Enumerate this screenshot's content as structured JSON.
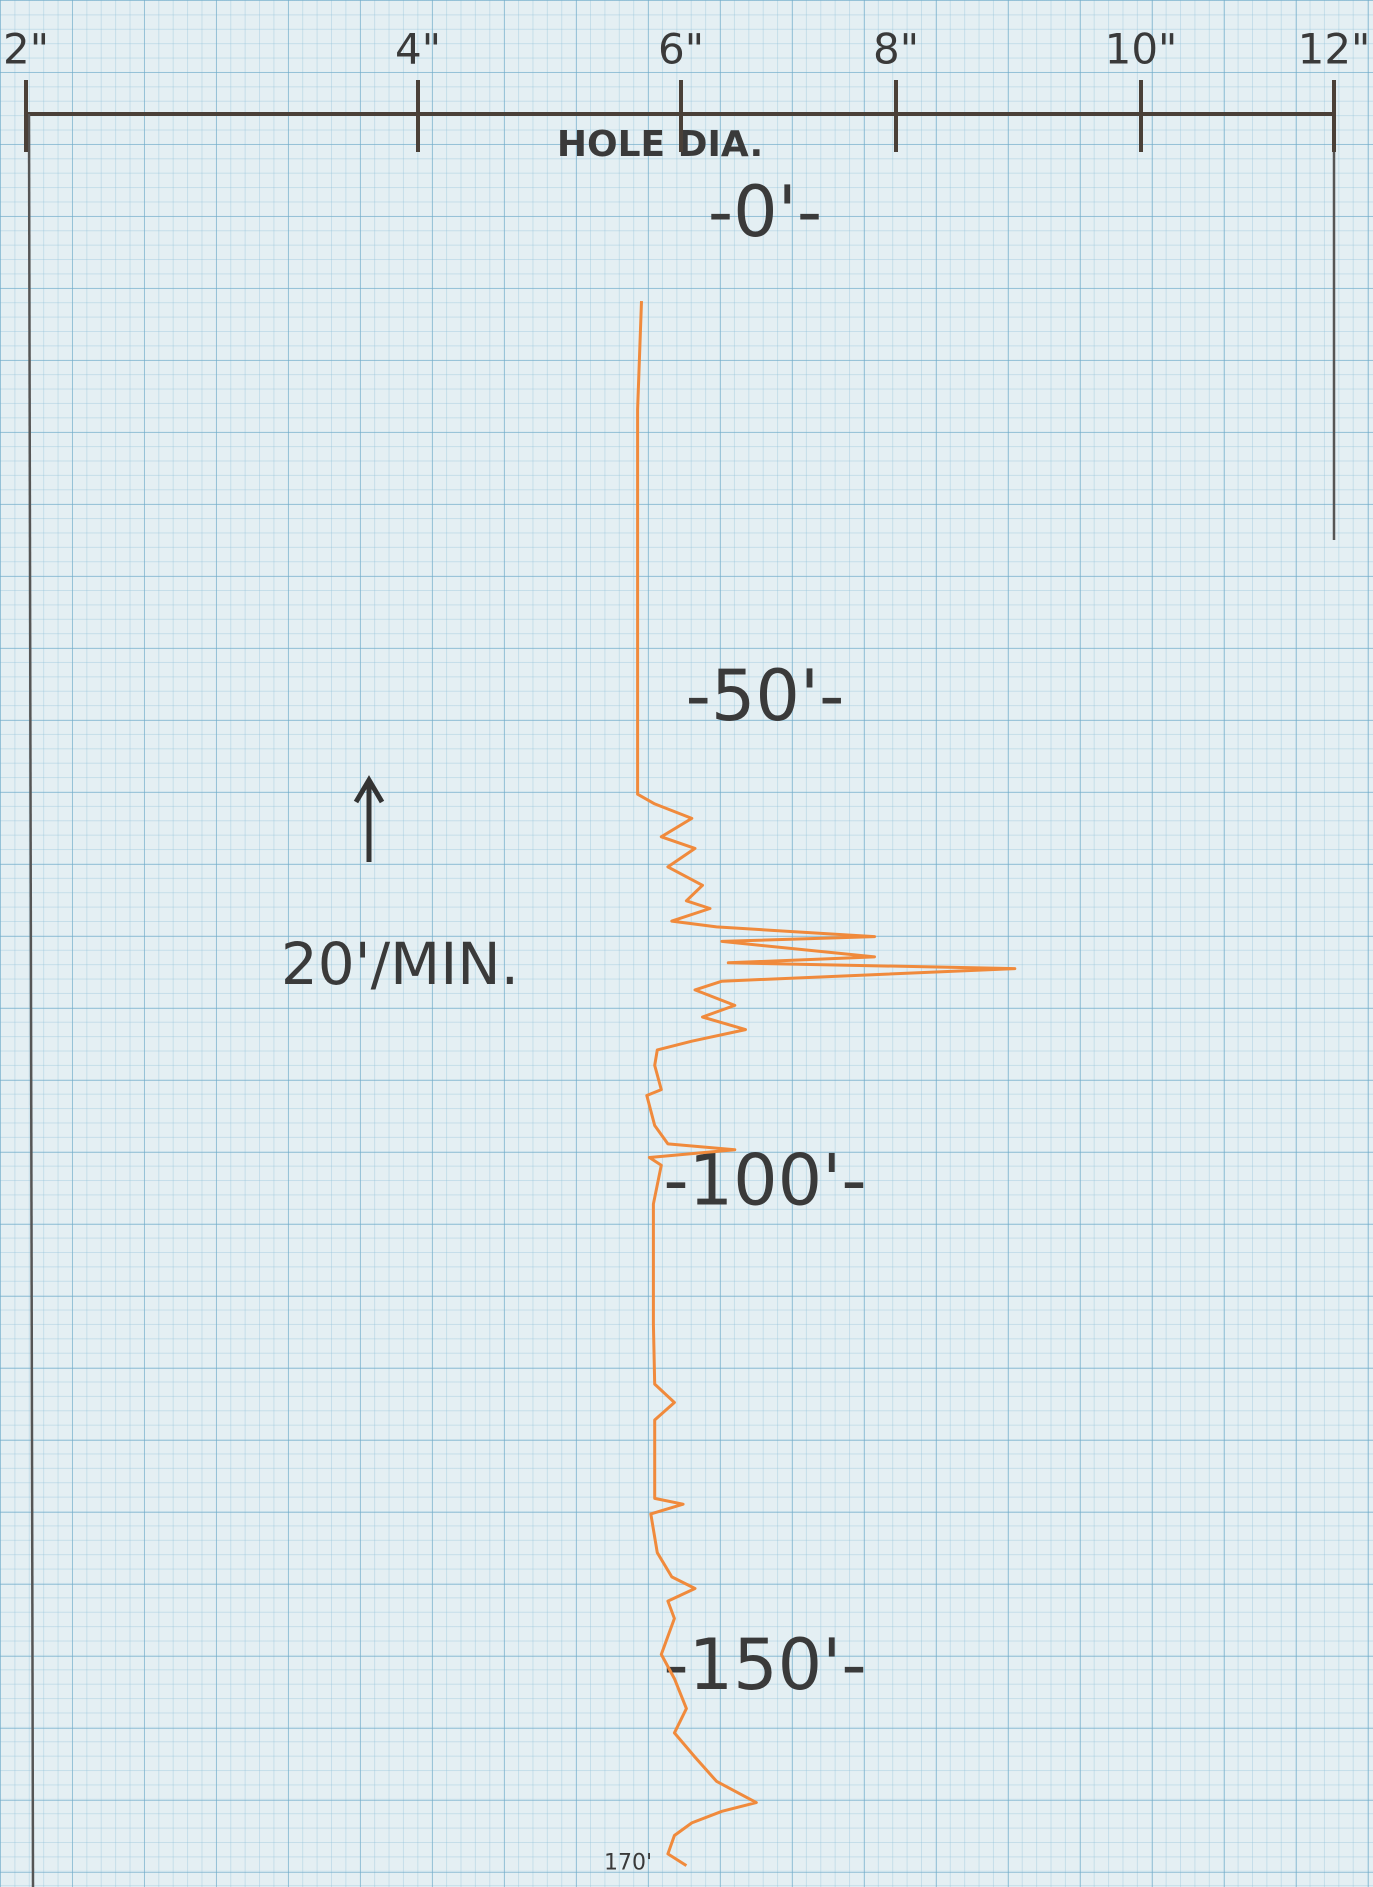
{
  "chart_data": {
    "type": "line",
    "x_label": "HOLE DIA.",
    "annotation": "20'/MIN.",
    "xlim": [
      2,
      12
    ],
    "xticks": [
      {
        "value": 2,
        "label": "2\""
      },
      {
        "value": 4,
        "label": "4\""
      },
      {
        "value": 6,
        "label": "6\""
      },
      {
        "value": 8,
        "label": "8\""
      },
      {
        "value": 10,
        "label": "10\""
      },
      {
        "value": 12,
        "label": "12\""
      }
    ],
    "ylim": [
      -10,
      172
    ],
    "y_inverted": true,
    "yticks": [
      {
        "value": 0,
        "label": "-0'-"
      },
      {
        "value": 50,
        "label": "-50'-"
      },
      {
        "value": 100,
        "label": "-100'-"
      },
      {
        "value": 150,
        "label": "-150'-"
      },
      {
        "value": 170,
        "label": "170'"
      }
    ],
    "series": [
      {
        "color": "#f08a3c",
        "y": [
          8.7,
          19.9,
          59.6,
          60.6,
          62.1,
          64,
          65.2,
          67.1,
          69,
          70.6,
          71.4,
          72.7,
          73.3,
          74.3,
          74.8,
          76.4,
          77,
          77.6,
          78.9,
          79.8,
          81.4,
          82.6,
          83.9,
          85.1,
          86,
          87.6,
          90.1,
          90.7,
          93.8,
          95.7,
          96.3,
          97.1,
          97.9,
          101.9,
          114.3,
          120.5,
          122.4,
          124.2,
          132.3,
          132.9,
          133.9,
          137.9,
          140.4,
          141.6,
          142.9,
          144.7,
          148.4,
          150.9,
          154,
          156.5,
          159,
          161.5,
          163.7,
          164.6,
          165.8,
          167.1,
          169,
          170.2
        ],
        "x": [
          5.7,
          5.67,
          5.67,
          5.8,
          6.1,
          5.85,
          6.13,
          5.9,
          6.2,
          6.05,
          6.27,
          5.93,
          6.33,
          7.8,
          6.38,
          7.8,
          6.44,
          8.97,
          6.38,
          6.13,
          6.5,
          6.2,
          6.6,
          6.1,
          5.82,
          5.8,
          5.85,
          5.74,
          5.8,
          5.9,
          6.5,
          5.76,
          5.85,
          5.79,
          5.79,
          5.8,
          5.95,
          5.8,
          5.8,
          6.02,
          5.77,
          5.82,
          5.93,
          6.13,
          5.9,
          5.95,
          5.85,
          5.95,
          6.05,
          5.95,
          6.13,
          6.33,
          6.7,
          6.38,
          6.1,
          5.95,
          5.9,
          6.05
        ]
      }
    ]
  }
}
